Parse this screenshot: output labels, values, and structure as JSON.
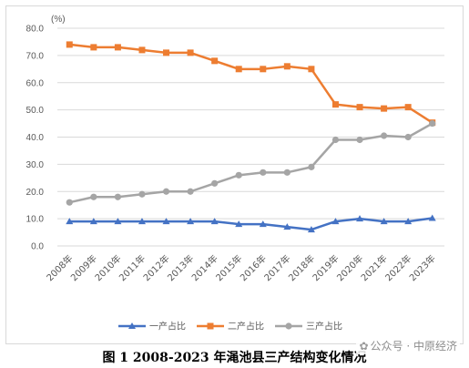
{
  "caption": "图 1 2008-2023 年渑池县三产结构变化情况",
  "watermark": "公众号 · 中原经济",
  "watermark_icon": "wechat-icon",
  "chart_data": {
    "type": "line",
    "unit_label": "(%)",
    "categories": [
      "2008年",
      "2009年",
      "2010年",
      "2011年",
      "2012年",
      "2013年",
      "2014年",
      "2015年",
      "2016年",
      "2017年",
      "2018年",
      "2019年",
      "2020年",
      "2021年",
      "2022年",
      "2023年"
    ],
    "ylim": [
      0,
      80
    ],
    "yticks": [
      "0.0",
      "10.0",
      "20.0",
      "30.0",
      "40.0",
      "50.0",
      "60.0",
      "70.0",
      "80.0"
    ],
    "grid": true,
    "legend_position": "bottom",
    "series": [
      {
        "name": "一产占比",
        "color": "#4472C4",
        "marker": "triangle",
        "values": [
          9,
          9,
          9,
          9,
          9,
          9,
          9,
          8,
          8,
          7,
          6,
          9,
          10,
          9,
          9,
          10.2
        ]
      },
      {
        "name": "二产占比",
        "color": "#ED7D31",
        "marker": "square",
        "values": [
          74,
          73,
          73,
          72,
          71,
          71,
          68,
          65,
          65,
          66,
          65,
          52,
          51,
          50.5,
          51,
          45.3
        ]
      },
      {
        "name": "三产占比",
        "color": "#A5A5A5",
        "marker": "circle",
        "values": [
          16,
          18,
          18,
          19,
          20,
          20,
          23,
          26,
          27,
          27,
          29,
          39,
          39,
          40.5,
          40,
          45
        ]
      }
    ]
  }
}
